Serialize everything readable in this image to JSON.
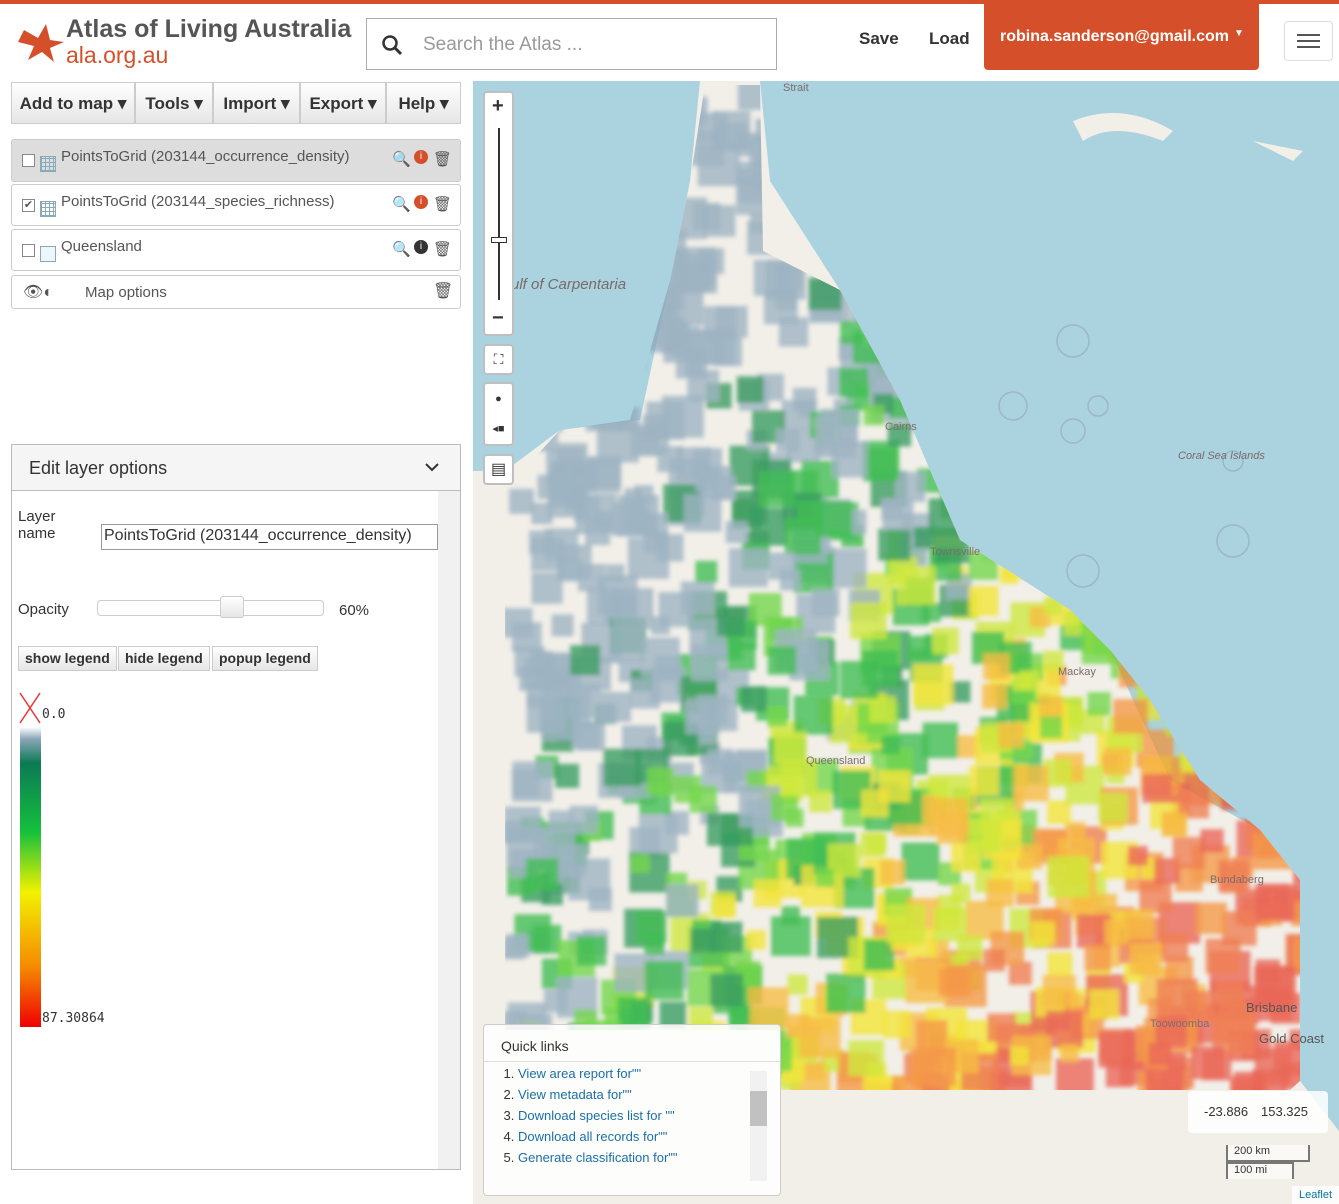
{
  "header": {
    "brand_title": "Atlas of Living Australia",
    "brand_url": "ala.org.au",
    "search_placeholder": "Search the Atlas ...",
    "nav": [
      "Save",
      "Load"
    ],
    "user": "robina.sanderson@gmail.com"
  },
  "toolbar": [
    "Add to map",
    "Tools",
    "Import",
    "Export",
    "Help"
  ],
  "layers": [
    {
      "name": "PointsToGrid (203144_occurrence_density)",
      "checked": false
    },
    {
      "name": "PointsToGrid (203144_species_richness)",
      "checked": true
    },
    {
      "name": "Queensland",
      "checked": false
    }
  ],
  "map_options": "Map options",
  "edit_panel": {
    "title": "Edit layer options",
    "layer_name_label": "Layer name",
    "layer_name_value": "PointsToGrid (203144_occurrence_density)",
    "opacity_label": "Opacity",
    "opacity_value": "60%",
    "buttons": [
      "show legend",
      "hide legend",
      "popup legend"
    ],
    "legend_min": "0.0",
    "legend_max": "87.30864"
  },
  "map": {
    "labels": [
      "Strait",
      "ulf of Carpentaria",
      "Cairns",
      "Coral Sea Islands",
      "Townsville",
      "Mackay",
      "Queensland",
      "Bundaberg",
      "Toowoomba",
      "Brisbane",
      "Gold Coast"
    ],
    "quick_links": {
      "title": "Quick links",
      "items": [
        "View area report for\"\"",
        "View metadata for\"\"",
        "Download species list for \"\"",
        "Download all records for\"\"",
        "Generate classification for\"\""
      ]
    },
    "coordinates": [
      "-23.886",
      "153.325"
    ],
    "scale": [
      "200 km",
      "100 mi"
    ],
    "attribution": "Leaflet"
  }
}
